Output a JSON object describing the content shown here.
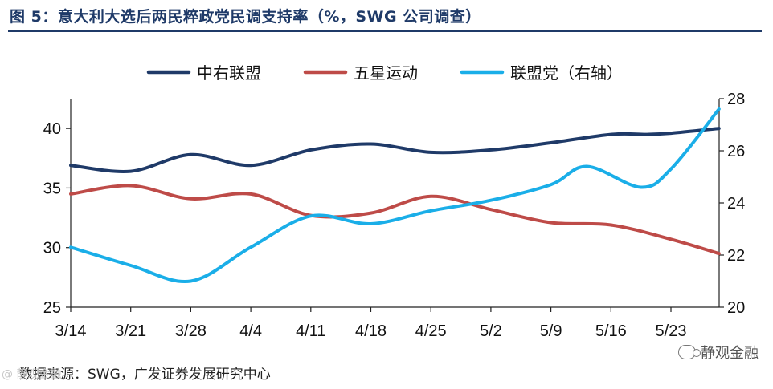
{
  "title": "图 5：意大利大选后两民粹政党民调支持率（%，SWG 公司调查）",
  "source": "数据来源：SWG，广发证券发展研究中心",
  "watermark_right": "静观金融",
  "watermark_left": "@ 静观金融",
  "chart_data": {
    "type": "line",
    "categories": [
      "3/14",
      "3/21",
      "3/28",
      "4/4",
      "4/11",
      "4/18",
      "4/25",
      "5/2",
      "5/9",
      "5/16",
      "5/23"
    ],
    "y_left": {
      "range": [
        25,
        42.5
      ],
      "ticks": [
        25,
        30,
        35,
        40
      ]
    },
    "y_right": {
      "range": [
        20,
        28
      ],
      "ticks": [
        20,
        22,
        24,
        26,
        28
      ]
    },
    "series": [
      {
        "name": "中右联盟",
        "axis": "left",
        "color": "#1f3a68",
        "x": [
          0,
          1,
          2,
          3,
          4,
          5,
          6,
          7,
          8,
          9,
          9.6,
          10,
          10.8
        ],
        "values": [
          36.9,
          36.4,
          37.8,
          36.9,
          38.2,
          38.7,
          38.0,
          38.2,
          38.8,
          39.5,
          39.5,
          39.6,
          40.0
        ]
      },
      {
        "name": "五星运动",
        "axis": "left",
        "color": "#be4b48",
        "x": [
          0,
          1,
          2,
          3,
          4,
          5,
          6,
          7,
          8,
          9,
          10,
          10.8
        ],
        "values": [
          34.5,
          35.2,
          34.1,
          34.5,
          32.7,
          32.9,
          34.3,
          33.2,
          32.1,
          31.9,
          30.7,
          29.5
        ]
      },
      {
        "name": "联盟党（右轴）",
        "axis": "right",
        "color": "#1aaee8",
        "x": [
          0,
          1,
          2,
          3,
          4,
          5,
          6,
          7,
          8,
          8.6,
          9.5,
          10,
          10.8
        ],
        "values": [
          22.3,
          21.6,
          21.0,
          22.3,
          23.5,
          23.2,
          23.7,
          24.1,
          24.7,
          25.4,
          24.6,
          25.3,
          27.6
        ]
      }
    ]
  }
}
